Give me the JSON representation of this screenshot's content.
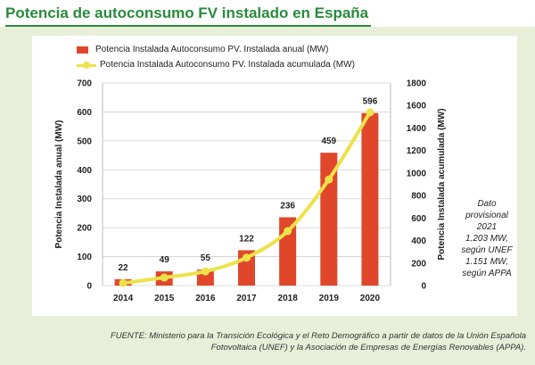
{
  "title": "Potencia de autoconsumo FV instalado en España",
  "legend": {
    "bar_label": "Potencia Instalada Autoconsumo PV. Instalada anual (MW)",
    "line_label": "Potencia Instalada Autoconsumo PV. Instalada acumulada (MW)"
  },
  "note": {
    "line1": "Dato",
    "line2": "provisional",
    "line3": "2021",
    "line4": "1.203 MW,",
    "line5": "según UNEF",
    "line6": "1.151 MW,",
    "line7": "según APPA"
  },
  "source": {
    "line1": "FUENTE: Ministerio para la Transición Ecológica y el Reto Demográfico a partir de datos de la Unión Española",
    "line2": "Fotovoltaica (UNEF) y la Asociación de Empresas de Energías Renovables (APPA)."
  },
  "colors": {
    "bar": "#e0472a",
    "line": "#ece24a",
    "title": "#2a8a3c"
  },
  "chart_data": {
    "type": "bar",
    "categories": [
      "2014",
      "2015",
      "2016",
      "2017",
      "2018",
      "2019",
      "2020"
    ],
    "series": [
      {
        "name": "Potencia Instalada Autoconsumo PV. Instalada anual (MW)",
        "type": "bar",
        "axis": "left",
        "values": [
          22,
          49,
          55,
          122,
          236,
          459,
          596
        ]
      },
      {
        "name": "Potencia Instalada Autoconsumo PV. Instalada acumulada (MW)",
        "type": "line",
        "axis": "right",
        "values": [
          22,
          71,
          126,
          248,
          484,
          943,
          1539
        ]
      }
    ],
    "data_labels": [
      "22",
      "49",
      "55",
      "122",
      "236",
      "459",
      "596"
    ],
    "ylabel": "Potencia Instalada anual (MW)",
    "y2label": "Potencia Instalada acumulada (MW)",
    "ylim": [
      0,
      700
    ],
    "y2lim": [
      0,
      1800
    ],
    "yticks": [
      "0",
      "100",
      "200",
      "300",
      "400",
      "500",
      "600",
      "700"
    ],
    "y2ticks": [
      "0",
      "200",
      "400",
      "600",
      "800",
      "1000",
      "1200",
      "1400",
      "1600",
      "1800"
    ],
    "grid": true,
    "legend_position": "top-left"
  }
}
